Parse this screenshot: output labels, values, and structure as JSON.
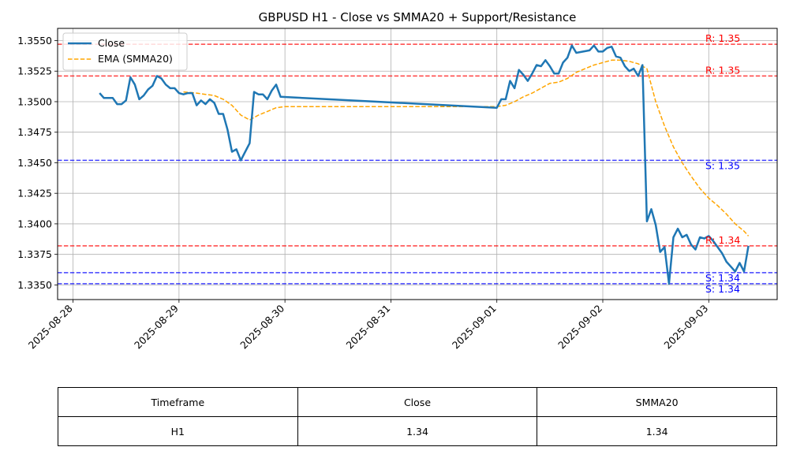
{
  "chart_data": {
    "type": "line",
    "title": "GBPUSD H1 - Close vs SMMA20 + Support/Resistance",
    "xlabel": "",
    "ylabel": "",
    "x_tick_labels": [
      "2025-08-28",
      "2025-08-29",
      "2025-08-30",
      "2025-08-31",
      "2025-09-01",
      "2025-09-02",
      "2025-09-03"
    ],
    "y_tick_labels": [
      "1.3350",
      "1.3375",
      "1.3400",
      "1.3425",
      "1.3450",
      "1.3475",
      "1.3500",
      "1.3525",
      "1.3550"
    ],
    "xlim": [
      "2025-08-27T20:30",
      "2025-09-03T15:30"
    ],
    "ylim": [
      1.3338,
      1.356
    ],
    "grid": true,
    "legend_position": "top-left",
    "series": [
      {
        "name": "Close",
        "color": "#1f77b4",
        "style": "solid",
        "points": [
          [
            "2025-08-28T06:00",
            1.3507
          ],
          [
            "2025-08-28T07:00",
            1.3503
          ],
          [
            "2025-08-28T08:00",
            1.3503
          ],
          [
            "2025-08-28T09:00",
            1.3503
          ],
          [
            "2025-08-28T10:00",
            1.3498
          ],
          [
            "2025-08-28T11:00",
            1.3498
          ],
          [
            "2025-08-28T12:00",
            1.3501
          ],
          [
            "2025-08-28T13:00",
            1.352
          ],
          [
            "2025-08-28T14:00",
            1.3514
          ],
          [
            "2025-08-28T15:00",
            1.3502
          ],
          [
            "2025-08-28T16:00",
            1.3505
          ],
          [
            "2025-08-28T17:00",
            1.351
          ],
          [
            "2025-08-28T18:00",
            1.3513
          ],
          [
            "2025-08-28T19:00",
            1.3521
          ],
          [
            "2025-08-28T20:00",
            1.3519
          ],
          [
            "2025-08-28T21:00",
            1.3514
          ],
          [
            "2025-08-28T22:00",
            1.3511
          ],
          [
            "2025-08-28T23:00",
            1.3511
          ],
          [
            "2025-08-29T00:00",
            1.3507
          ],
          [
            "2025-08-29T01:00",
            1.3506
          ],
          [
            "2025-08-29T02:00",
            1.3507
          ],
          [
            "2025-08-29T03:00",
            1.3507
          ],
          [
            "2025-08-29T04:00",
            1.3497
          ],
          [
            "2025-08-29T05:00",
            1.3501
          ],
          [
            "2025-08-29T06:00",
            1.3498
          ],
          [
            "2025-08-29T07:00",
            1.3502
          ],
          [
            "2025-08-29T08:00",
            1.3499
          ],
          [
            "2025-08-29T09:00",
            1.349
          ],
          [
            "2025-08-29T10:00",
            1.349
          ],
          [
            "2025-08-29T11:00",
            1.3477
          ],
          [
            "2025-08-29T12:00",
            1.3459
          ],
          [
            "2025-08-29T13:00",
            1.3461
          ],
          [
            "2025-08-29T14:00",
            1.3452
          ],
          [
            "2025-08-29T15:00",
            1.3459
          ],
          [
            "2025-08-29T16:00",
            1.3466
          ],
          [
            "2025-08-29T17:00",
            1.3508
          ],
          [
            "2025-08-29T18:00",
            1.3506
          ],
          [
            "2025-08-29T19:00",
            1.3506
          ],
          [
            "2025-08-29T20:00",
            1.3502
          ],
          [
            "2025-08-29T21:00",
            1.3509
          ],
          [
            "2025-08-29T22:00",
            1.3514
          ],
          [
            "2025-08-29T23:00",
            1.3504
          ],
          [
            "2025-09-01T00:00",
            1.3495
          ],
          [
            "2025-09-01T01:00",
            1.3502
          ],
          [
            "2025-09-01T02:00",
            1.3502
          ],
          [
            "2025-09-01T03:00",
            1.3517
          ],
          [
            "2025-09-01T04:00",
            1.3511
          ],
          [
            "2025-09-01T05:00",
            1.3526
          ],
          [
            "2025-09-01T06:00",
            1.3522
          ],
          [
            "2025-09-01T07:00",
            1.3517
          ],
          [
            "2025-09-01T08:00",
            1.3523
          ],
          [
            "2025-09-01T09:00",
            1.353
          ],
          [
            "2025-09-01T10:00",
            1.3529
          ],
          [
            "2025-09-01T11:00",
            1.3534
          ],
          [
            "2025-09-01T12:00",
            1.3529
          ],
          [
            "2025-09-01T13:00",
            1.3523
          ],
          [
            "2025-09-01T14:00",
            1.3523
          ],
          [
            "2025-09-01T15:00",
            1.3532
          ],
          [
            "2025-09-01T16:00",
            1.3536
          ],
          [
            "2025-09-01T17:00",
            1.3546
          ],
          [
            "2025-09-01T18:00",
            1.354
          ],
          [
            "2025-09-01T21:00",
            1.3542
          ],
          [
            "2025-09-01T22:00",
            1.3546
          ],
          [
            "2025-09-01T23:00",
            1.3541
          ],
          [
            "2025-09-02T00:00",
            1.3541
          ],
          [
            "2025-09-02T01:00",
            1.3544
          ],
          [
            "2025-09-02T02:00",
            1.3545
          ],
          [
            "2025-09-02T03:00",
            1.3537
          ],
          [
            "2025-09-02T04:00",
            1.3536
          ],
          [
            "2025-09-02T05:00",
            1.3529
          ],
          [
            "2025-09-02T06:00",
            1.3525
          ],
          [
            "2025-09-02T07:00",
            1.3527
          ],
          [
            "2025-09-02T08:00",
            1.3521
          ],
          [
            "2025-09-02T09:00",
            1.353
          ],
          [
            "2025-09-02T10:00",
            1.3402
          ],
          [
            "2025-09-02T11:00",
            1.3412
          ],
          [
            "2025-09-02T12:00",
            1.3399
          ],
          [
            "2025-09-02T13:00",
            1.3377
          ],
          [
            "2025-09-02T14:00",
            1.3381
          ],
          [
            "2025-09-02T15:00",
            1.3351
          ],
          [
            "2025-09-02T16:00",
            1.3389
          ],
          [
            "2025-09-02T17:00",
            1.3396
          ],
          [
            "2025-09-02T18:00",
            1.3389
          ],
          [
            "2025-09-02T19:00",
            1.3391
          ],
          [
            "2025-09-02T20:00",
            1.3383
          ],
          [
            "2025-09-02T21:00",
            1.3379
          ],
          [
            "2025-09-02T22:00",
            1.3389
          ],
          [
            "2025-09-02T23:00",
            1.3388
          ],
          [
            "2025-09-03T00:00",
            1.339
          ],
          [
            "2025-09-03T01:00",
            1.3386
          ],
          [
            "2025-09-03T02:00",
            1.3381
          ],
          [
            "2025-09-03T03:00",
            1.3376
          ],
          [
            "2025-09-03T04:00",
            1.3369
          ],
          [
            "2025-09-03T05:00",
            1.3365
          ],
          [
            "2025-09-03T06:00",
            1.3361
          ],
          [
            "2025-09-03T07:00",
            1.3368
          ],
          [
            "2025-09-03T08:00",
            1.3361
          ],
          [
            "2025-09-03T09:00",
            1.3382
          ]
        ]
      },
      {
        "name": "EMA (SMMA20)",
        "color": "#ffa500",
        "style": "dashed",
        "points": [
          [
            "2025-08-29T01:00",
            1.3508
          ],
          [
            "2025-08-29T04:00",
            1.3507
          ],
          [
            "2025-08-29T06:00",
            1.3506
          ],
          [
            "2025-08-29T08:00",
            1.3505
          ],
          [
            "2025-08-29T10:00",
            1.3502
          ],
          [
            "2025-08-29T12:00",
            1.3497
          ],
          [
            "2025-08-29T14:00",
            1.3489
          ],
          [
            "2025-08-29T16:00",
            1.3485
          ],
          [
            "2025-08-29T18:00",
            1.3489
          ],
          [
            "2025-08-29T20:00",
            1.3492
          ],
          [
            "2025-08-29T22:00",
            1.3495
          ],
          [
            "2025-08-30T00:00",
            1.3496
          ],
          [
            "2025-09-01T00:00",
            1.3496
          ],
          [
            "2025-09-01T02:00",
            1.3497
          ],
          [
            "2025-09-01T04:00",
            1.35
          ],
          [
            "2025-09-01T06:00",
            1.3504
          ],
          [
            "2025-09-01T08:00",
            1.3507
          ],
          [
            "2025-09-01T10:00",
            1.3511
          ],
          [
            "2025-09-01T12:00",
            1.3515
          ],
          [
            "2025-09-01T14:00",
            1.3516
          ],
          [
            "2025-09-01T16:00",
            1.3519
          ],
          [
            "2025-09-01T18:00",
            1.3524
          ],
          [
            "2025-09-01T20:00",
            1.3527
          ],
          [
            "2025-09-01T22:00",
            1.353
          ],
          [
            "2025-09-02T00:00",
            1.3532
          ],
          [
            "2025-09-02T02:00",
            1.3534
          ],
          [
            "2025-09-02T04:00",
            1.3534
          ],
          [
            "2025-09-02T06:00",
            1.3533
          ],
          [
            "2025-09-02T08:00",
            1.3531
          ],
          [
            "2025-09-02T10:00",
            1.3527
          ],
          [
            "2025-09-02T12:00",
            1.35
          ],
          [
            "2025-09-02T14:00",
            1.348
          ],
          [
            "2025-09-02T16:00",
            1.3463
          ],
          [
            "2025-09-02T18:00",
            1.345
          ],
          [
            "2025-09-02T20:00",
            1.3439
          ],
          [
            "2025-09-02T22:00",
            1.3429
          ],
          [
            "2025-09-03T00:00",
            1.3421
          ],
          [
            "2025-09-03T02:00",
            1.3415
          ],
          [
            "2025-09-03T04:00",
            1.3408
          ],
          [
            "2025-09-03T06:00",
            1.34
          ],
          [
            "2025-09-03T08:00",
            1.3394
          ],
          [
            "2025-09-03T09:00",
            1.339
          ]
        ]
      }
    ],
    "horizontal_lines": [
      {
        "kind": "resistance",
        "value": 1.3547,
        "label": "R: 1.35",
        "color": "#ff0000"
      },
      {
        "kind": "resistance",
        "value": 1.3521,
        "label": "R: 1.35",
        "color": "#ff0000"
      },
      {
        "kind": "support",
        "value": 1.3452,
        "label": "S: 1.35",
        "color": "#0000ff"
      },
      {
        "kind": "resistance",
        "value": 1.3382,
        "label": "R: 1.34",
        "color": "#ff0000"
      },
      {
        "kind": "support",
        "value": 1.336,
        "label": "S: 1.34",
        "color": "#0000ff"
      },
      {
        "kind": "support",
        "value": 1.3351,
        "label": "S: 1.34",
        "color": "#0000ff"
      }
    ]
  },
  "table": {
    "headers": [
      "Timeframe",
      "Close",
      "SMMA20"
    ],
    "rows": [
      [
        "H1",
        "1.34",
        "1.34"
      ]
    ]
  }
}
